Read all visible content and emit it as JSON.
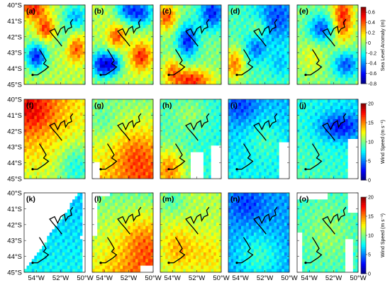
{
  "figure": {
    "panels": [
      {
        "id": "a",
        "label": "(a)",
        "row": 0,
        "variable": "sla"
      },
      {
        "id": "b",
        "label": "(b)",
        "row": 0,
        "variable": "sla"
      },
      {
        "id": "c",
        "label": "(c)",
        "row": 0,
        "variable": "sla"
      },
      {
        "id": "d",
        "label": "(d)",
        "row": 0,
        "variable": "sla"
      },
      {
        "id": "e",
        "label": "(e)",
        "row": 0,
        "variable": "sla"
      },
      {
        "id": "f",
        "label": "(f)",
        "row": 1,
        "variable": "wind"
      },
      {
        "id": "g",
        "label": "(g)",
        "row": 1,
        "variable": "wind"
      },
      {
        "id": "h",
        "label": "(h)",
        "row": 1,
        "variable": "wind"
      },
      {
        "id": "i",
        "label": "(i)",
        "row": 1,
        "variable": "wind"
      },
      {
        "id": "j",
        "label": "(j)",
        "row": 1,
        "variable": "wind"
      },
      {
        "id": "k",
        "label": "(k)",
        "row": 2,
        "variable": "wind"
      },
      {
        "id": "l",
        "label": "(l)",
        "row": 2,
        "variable": "wind"
      },
      {
        "id": "m",
        "label": "(m)",
        "row": 2,
        "variable": "wind"
      },
      {
        "id": "n",
        "label": "(n)",
        "row": 2,
        "variable": "wind"
      },
      {
        "id": "o",
        "label": "(o)",
        "row": 2,
        "variable": "wind"
      }
    ],
    "y_tick_labels": [
      "40°S",
      "41°S",
      "42°S",
      "43°S",
      "44°S",
      "45°S"
    ],
    "x_tick_labels": [
      "54°W",
      "52°W",
      "50°W"
    ],
    "colorbars": [
      {
        "id": "sla",
        "label": "Sea Level Anomaly (m)",
        "ticks": [
          "0.6",
          "0.4",
          "0.2",
          "0",
          "-0.2",
          "-0.4",
          "-0.6",
          "-0.8"
        ],
        "range": [
          -0.8,
          0.7
        ]
      },
      {
        "id": "wind_1",
        "label": "Wind Speed (m s⁻¹)",
        "ticks": [
          "20",
          "15",
          "10",
          "5",
          "0"
        ],
        "range": [
          0,
          20
        ]
      },
      {
        "id": "wind_2",
        "label": "Wind Speed (m s⁻¹)",
        "ticks": [
          "20",
          "15",
          "10",
          "5",
          "0"
        ],
        "range": [
          0,
          20
        ]
      }
    ]
  },
  "chart_data": [
    {
      "type": "heatmap",
      "subplots": "3 x 5 map panels (a)-(o)",
      "row_1_variable": "Sea Level Anomaly (m)",
      "rows_2_3_variable": "Wind Speed (m s⁻¹)",
      "x": [
        "55°W",
        "54°W",
        "53°W",
        "52°W",
        "51°W",
        "50°W"
      ],
      "x_ticks": [
        "54°W",
        "52°W",
        "50°W"
      ],
      "y": [
        "40°S",
        "41°S",
        "42°S",
        "43°S",
        "44°S",
        "45°S"
      ],
      "xlim": [
        "55°W",
        "50°W"
      ],
      "ylim": [
        "45°S",
        "40°S"
      ],
      "colorbars": [
        {
          "label": "Sea Level Anomaly (m)",
          "range": [
            -0.8,
            0.7
          ],
          "colormap": "jet"
        },
        {
          "label": "Wind Speed (m s⁻¹)",
          "range": [
            0,
            20
          ],
          "colormap": "jet"
        }
      ],
      "overlay": "black track line with markers drawn in each panel",
      "missing_data": "white areas in panels (g),(h),(i),(j),(k),(l),(o)"
    }
  ]
}
